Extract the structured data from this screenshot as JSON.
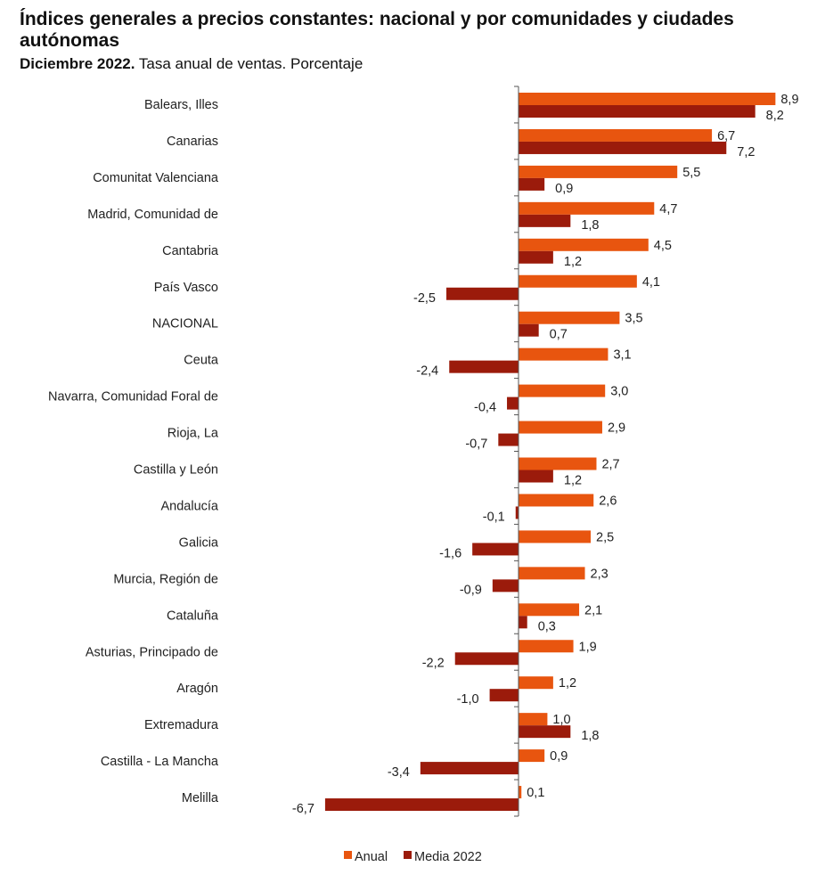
{
  "chart_data": {
    "type": "bar",
    "orientation": "horizontal",
    "title": "Índices generales a precios constantes: nacional y por comunidades y ciudades autónomas",
    "subtitle_bold": "Diciembre 2022.",
    "subtitle": "Tasa anual de ventas. Porcentaje",
    "categories": [
      "Balears, Illes",
      "Canarias",
      "Comunitat Valenciana",
      "Madrid, Comunidad de",
      "Cantabria",
      "País Vasco",
      "NACIONAL",
      "Ceuta",
      "Navarra, Comunidad Foral de",
      "Rioja, La",
      "Castilla y León",
      "Andalucía",
      "Galicia",
      "Murcia, Región de",
      "Cataluña",
      "Asturias, Principado de",
      "Aragón",
      "Extremadura",
      "Castilla - La Mancha",
      "Melilla"
    ],
    "series": [
      {
        "name": "Anual",
        "color": "#E8550F",
        "values": [
          8.9,
          6.7,
          5.5,
          4.7,
          4.5,
          4.1,
          3.5,
          3.1,
          3.0,
          2.9,
          2.7,
          2.6,
          2.5,
          2.3,
          2.1,
          1.9,
          1.2,
          1.0,
          0.9,
          0.1
        ]
      },
      {
        "name": "Media 2022",
        "color": "#9B1B0B",
        "values": [
          8.2,
          7.2,
          0.9,
          1.8,
          1.2,
          -2.5,
          0.7,
          -2.4,
          -0.4,
          -0.7,
          1.2,
          -0.1,
          -1.6,
          -0.9,
          0.3,
          -2.2,
          -1.0,
          1.8,
          -3.4,
          -6.7
        ]
      }
    ],
    "xlim": [
      -6.7,
      8.9
    ],
    "grid": false,
    "legend": "bottom",
    "data_labels": true,
    "decimal_separator": ","
  }
}
